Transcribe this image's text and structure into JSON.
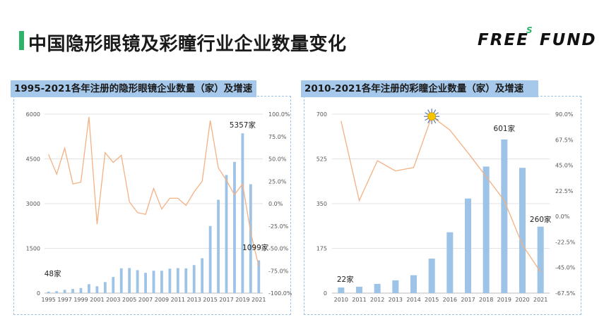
{
  "page": {
    "title": "中国隐形眼镜及彩瞳行业企业数量变化",
    "logo_text_1": "FREE",
    "logo_text_s": "S",
    "logo_text_2": "FUND"
  },
  "colors": {
    "accent": "#2fb36b",
    "bar": "#9dc3e6",
    "line": "#f4b183",
    "header_bg": "#a6c8ea"
  },
  "chart_data": [
    {
      "type": "bar",
      "title": "1995-2021各年注册的隐形眼镜企业数量（家）及增速",
      "categories": [
        "1995",
        "1996",
        "1997",
        "1998",
        "1999",
        "2000",
        "2001",
        "2002",
        "2003",
        "2004",
        "2005",
        "2006",
        "2007",
        "2008",
        "2009",
        "2010",
        "2011",
        "2012",
        "2013",
        "2014",
        "2015",
        "2016",
        "2017",
        "2018",
        "2019",
        "2020",
        "2021"
      ],
      "x_tick_labels": [
        "1995",
        "1997",
        "1999",
        "2001",
        "2003",
        "2005",
        "2007",
        "2009",
        "2011",
        "2013",
        "2015",
        "2017",
        "2019",
        "2021"
      ],
      "series": [
        {
          "name": "企业数量",
          "kind": "bar",
          "axis": "left",
          "values": [
            48,
            65,
            110,
            140,
            170,
            300,
            230,
            370,
            540,
            830,
            840,
            770,
            680,
            750,
            750,
            820,
            840,
            830,
            940,
            1170,
            2250,
            3130,
            3960,
            4400,
            5357,
            3650,
            1099
          ]
        },
        {
          "name": "增速",
          "kind": "line",
          "axis": "right",
          "values": [
            55,
            33,
            62,
            22,
            24,
            97,
            -23,
            57,
            46,
            54,
            2,
            -10,
            -12,
            17,
            -6,
            6,
            6,
            -2,
            13,
            25,
            93,
            40,
            26,
            10,
            22,
            -32,
            -70
          ]
        }
      ],
      "ylim_left": [
        0,
        6000
      ],
      "yticks_left": [
        "0",
        "1500",
        "3000",
        "4500",
        "6000"
      ],
      "ylim_right": [
        -100,
        100
      ],
      "yticks_right": [
        "100.0%",
        "75.0%",
        "50.0%",
        "25.0%",
        "0.0%",
        "-25.0%",
        "-50.0%",
        "-75.0%",
        "-100.0%"
      ],
      "annotations": [
        {
          "category": "1995",
          "text": "48家"
        },
        {
          "category": "2019",
          "text": "5357家"
        },
        {
          "category": "2021",
          "text": "1099家"
        }
      ],
      "grid": true
    },
    {
      "type": "bar",
      "title": "2010-2021各年注册的彩瞳企业数量（家）及增速",
      "categories": [
        "2010",
        "2011",
        "2012",
        "2013",
        "2014",
        "2015",
        "2016",
        "2017",
        "2018",
        "2019",
        "2020",
        "2021"
      ],
      "x_tick_labels": [
        "2010",
        "2011",
        "2012",
        "2013",
        "2014",
        "2015",
        "2016",
        "2017",
        "2018",
        "2019",
        "2020",
        "2021"
      ],
      "series": [
        {
          "name": "企业数量",
          "kind": "bar",
          "axis": "left",
          "values": [
            22,
            25,
            36,
            50,
            70,
            135,
            238,
            370,
            495,
            601,
            490,
            260
          ]
        },
        {
          "name": "增速",
          "kind": "line",
          "axis": "right",
          "values": [
            84,
            14,
            49,
            40,
            43,
            88,
            76,
            56,
            35,
            14,
            -25,
            -49
          ]
        }
      ],
      "ylim_left": [
        0,
        700
      ],
      "yticks_left": [
        "0",
        "175",
        "350",
        "525",
        "700"
      ],
      "ylim_right": [
        -67.5,
        90
      ],
      "yticks_right": [
        "90.0%",
        "67.5%",
        "45.0%",
        "22.5%",
        "0.0%",
        "-22.5%",
        "-45.0%",
        "-67.5%"
      ],
      "annotations": [
        {
          "category": "2010",
          "text": "22家"
        },
        {
          "category": "2019",
          "text": "601家"
        },
        {
          "category": "2021",
          "text": "260家"
        }
      ],
      "highlight": {
        "category": "2015",
        "icon": "sun-burst-icon"
      },
      "grid": true
    }
  ]
}
